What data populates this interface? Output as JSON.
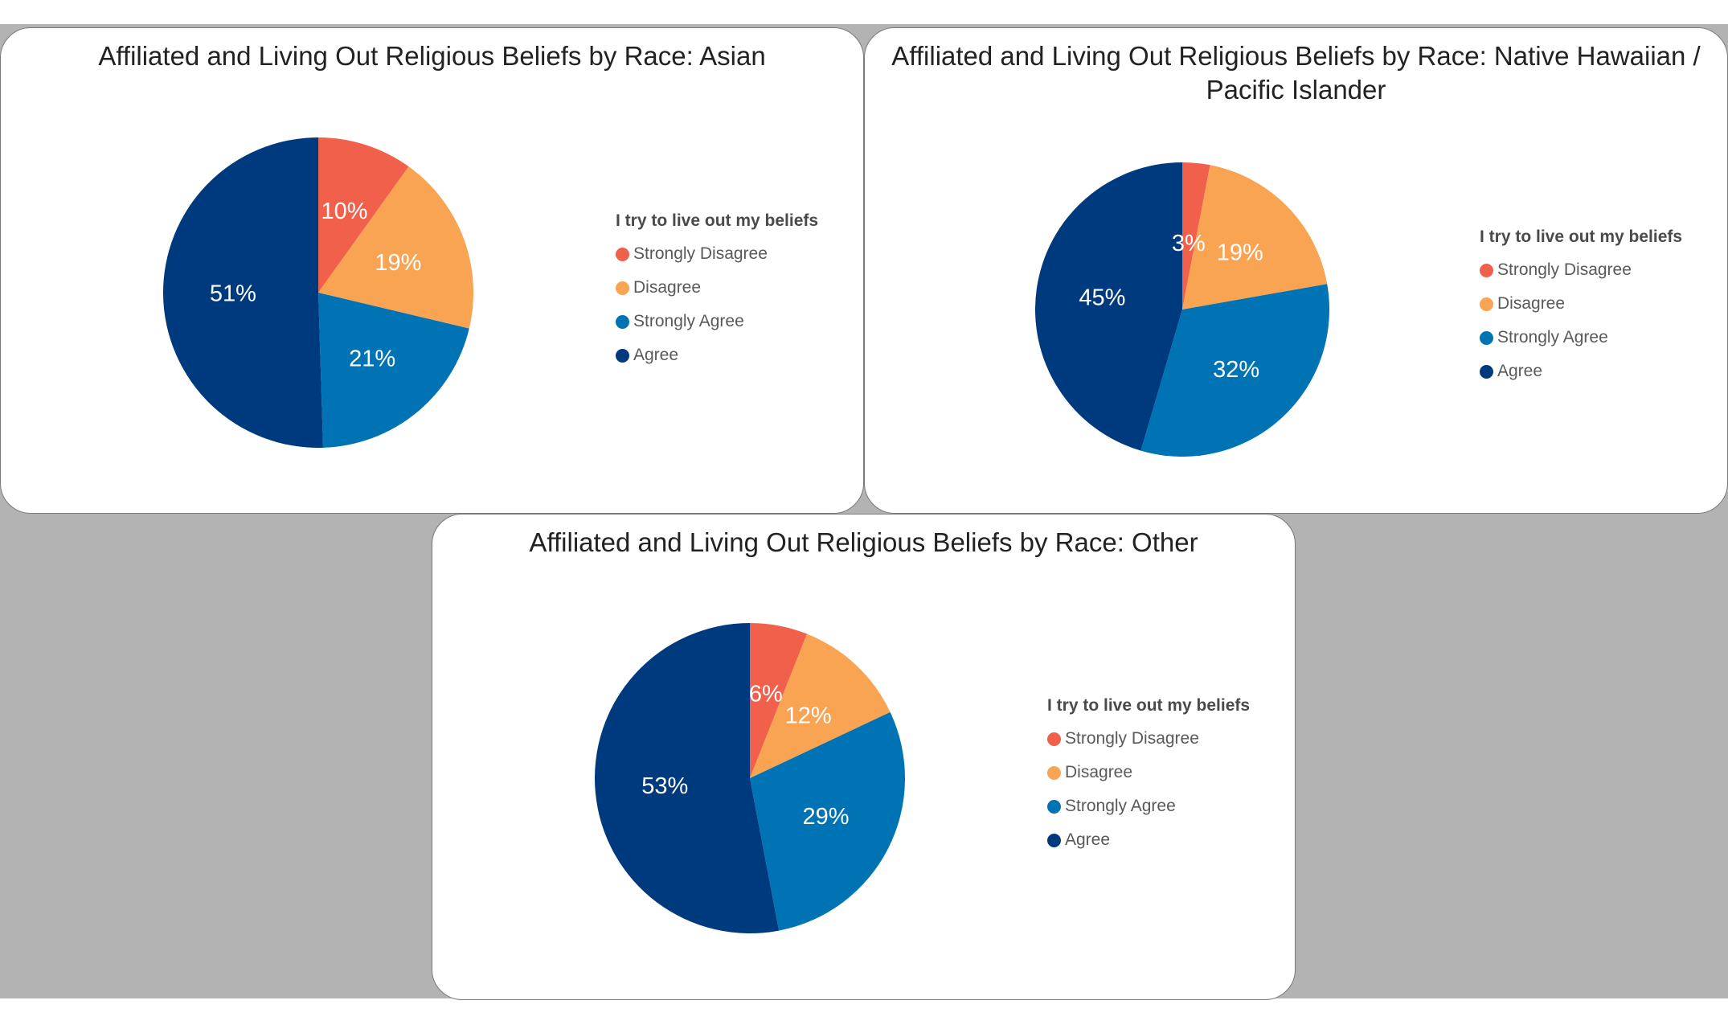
{
  "colors": {
    "strongly_disagree": "#f0604a",
    "disagree": "#f8a453",
    "strongly_agree": "#0073b4",
    "agree": "#003a7e"
  },
  "chart_data": [
    {
      "type": "pie",
      "title": "Affiliated and Living Out Religious Beliefs by Race: Asian",
      "legend_title": "I try to live out my beliefs",
      "legend_position": "right",
      "categories": [
        "Strongly Disagree",
        "Disagree",
        "Strongly Agree",
        "Agree"
      ],
      "values": [
        10,
        19,
        21,
        51
      ],
      "labels": [
        "10%",
        "19%",
        "21%",
        "51%"
      ]
    },
    {
      "type": "pie",
      "title": "Affiliated and Living Out Religious Beliefs by Race: Native Hawaiian / Pacific Islander",
      "legend_title": "I try to live out my beliefs",
      "legend_position": "right",
      "categories": [
        "Strongly Disagree",
        "Disagree",
        "Strongly Agree",
        "Agree"
      ],
      "values": [
        3,
        19,
        32,
        45
      ],
      "labels": [
        "3%",
        "19%",
        "32%",
        "45%"
      ]
    },
    {
      "type": "pie",
      "title": "Affiliated and Living Out Religious Beliefs by Race: Other",
      "legend_title": "I try to live out my beliefs",
      "legend_position": "right",
      "categories": [
        "Strongly Disagree",
        "Disagree",
        "Strongly Agree",
        "Agree"
      ],
      "values": [
        6,
        12,
        29,
        53
      ],
      "labels": [
        "6%",
        "12%",
        "29%",
        "53%"
      ]
    }
  ]
}
